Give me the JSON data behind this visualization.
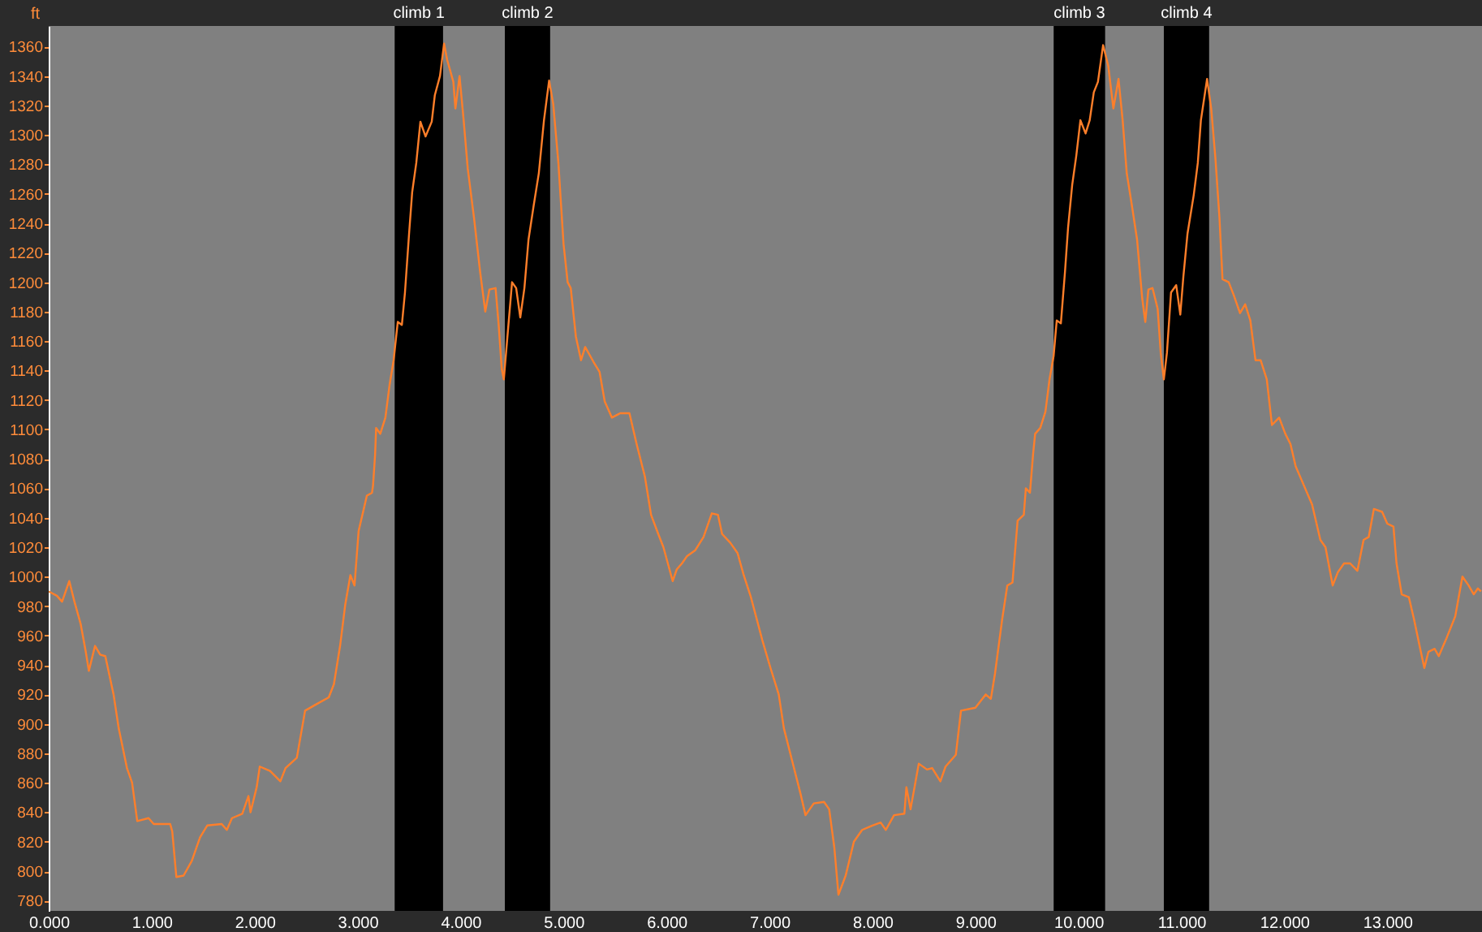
{
  "chart_data": {
    "type": "line",
    "ylabel": "ft",
    "color": "#ff7f2a",
    "line_style": "solid",
    "x": [
      0.0,
      0.08,
      0.13,
      0.2,
      0.25,
      0.31,
      0.36,
      0.39,
      0.45,
      0.5,
      0.55,
      0.63,
      0.68,
      0.76,
      0.81,
      0.86,
      0.97,
      1.02,
      1.18,
      1.2,
      1.24,
      1.31,
      1.39,
      1.47,
      1.54,
      1.68,
      1.73,
      1.78,
      1.88,
      1.94,
      1.96,
      2.02,
      2.05,
      2.15,
      2.25,
      2.3,
      2.41,
      2.49,
      2.59,
      2.72,
      2.77,
      2.83,
      2.88,
      2.93,
      2.97,
      3.01,
      3.06,
      3.09,
      3.14,
      3.15,
      3.17,
      3.18,
      3.22,
      3.27,
      3.31,
      3.35,
      3.39,
      3.43,
      3.46,
      3.5,
      3.53,
      3.57,
      3.61,
      3.66,
      3.72,
      3.75,
      3.8,
      3.84,
      3.87,
      3.93,
      3.95,
      3.99,
      4.03,
      4.07,
      4.13,
      4.19,
      4.24,
      4.28,
      4.34,
      4.37,
      4.4,
      4.42,
      4.46,
      4.5,
      4.54,
      4.58,
      4.62,
      4.66,
      4.71,
      4.76,
      4.81,
      4.86,
      4.9,
      4.95,
      5.0,
      5.04,
      5.07,
      5.12,
      5.17,
      5.21,
      5.29,
      5.35,
      5.4,
      5.47,
      5.55,
      5.64,
      5.71,
      5.79,
      5.85,
      5.92,
      5.97,
      6.06,
      6.1,
      6.15,
      6.2,
      6.28,
      6.36,
      6.44,
      6.5,
      6.54,
      6.62,
      6.69,
      6.75,
      6.82,
      6.93,
      7.01,
      7.09,
      7.14,
      7.22,
      7.3,
      7.35,
      7.43,
      7.53,
      7.58,
      7.63,
      7.67,
      7.74,
      7.82,
      7.9,
      8.0,
      8.08,
      8.13,
      8.21,
      8.31,
      8.33,
      8.37,
      8.45,
      8.53,
      8.58,
      8.66,
      8.71,
      8.81,
      8.86,
      9.0,
      9.1,
      9.15,
      9.19,
      9.26,
      9.31,
      9.36,
      9.41,
      9.47,
      9.49,
      9.53,
      9.56,
      9.58,
      9.63,
      9.68,
      9.72,
      9.76,
      9.79,
      9.83,
      9.87,
      9.9,
      9.94,
      9.98,
      10.02,
      10.07,
      10.11,
      10.15,
      10.19,
      10.24,
      10.29,
      10.34,
      10.39,
      10.43,
      10.47,
      10.52,
      10.57,
      10.62,
      10.65,
      10.68,
      10.72,
      10.77,
      10.8,
      10.83,
      10.86,
      10.9,
      10.95,
      10.99,
      11.02,
      11.06,
      11.12,
      11.16,
      11.19,
      11.25,
      11.29,
      11.33,
      11.37,
      11.4,
      11.46,
      11.51,
      11.57,
      11.62,
      11.67,
      11.72,
      11.77,
      11.83,
      11.88,
      11.95,
      12.01,
      12.06,
      12.11,
      12.19,
      12.27,
      12.35,
      12.4,
      12.47,
      12.52,
      12.58,
      12.64,
      12.71,
      12.77,
      12.82,
      12.87,
      12.95,
      13.0,
      13.06,
      13.09,
      13.14,
      13.21,
      13.26,
      13.32,
      13.36,
      13.4,
      13.46,
      13.5,
      13.58,
      13.66,
      13.73,
      13.79,
      13.84,
      13.88,
      13.91
    ],
    "values": [
      990,
      987,
      983,
      997,
      983,
      968,
      949,
      936,
      953,
      947,
      946,
      920,
      897,
      870,
      860,
      834,
      836,
      832,
      832,
      827,
      796,
      797,
      807,
      823,
      831,
      832,
      828,
      836,
      839,
      851,
      840,
      857,
      871,
      868,
      861,
      870,
      877,
      909,
      913,
      918,
      927,
      953,
      981,
      1001,
      994,
      1031,
      1046,
      1055,
      1057,
      1062,
      1083,
      1101,
      1097,
      1108,
      1130,
      1147,
      1173,
      1171,
      1193,
      1233,
      1261,
      1281,
      1309,
      1299,
      1309,
      1327,
      1340,
      1362,
      1351,
      1336,
      1318,
      1340,
      1310,
      1277,
      1244,
      1207,
      1180,
      1195,
      1196,
      1171,
      1141,
      1134,
      1167,
      1200,
      1196,
      1176,
      1196,
      1229,
      1252,
      1274,
      1310,
      1337,
      1321,
      1281,
      1226,
      1200,
      1196,
      1163,
      1147,
      1156,
      1146,
      1139,
      1119,
      1108,
      1111,
      1111,
      1090,
      1068,
      1042,
      1029,
      1020,
      997,
      1005,
      1009,
      1014,
      1018,
      1027,
      1043,
      1042,
      1029,
      1023,
      1016,
      1001,
      986,
      957,
      938,
      920,
      897,
      875,
      853,
      838,
      846,
      847,
      842,
      816,
      784,
      797,
      820,
      828,
      831,
      833,
      828,
      838,
      839,
      857,
      842,
      873,
      869,
      870,
      861,
      871,
      879,
      909,
      911,
      920,
      917,
      934,
      971,
      994,
      996,
      1038,
      1042,
      1060,
      1057,
      1083,
      1097,
      1101,
      1112,
      1134,
      1150,
      1174,
      1172,
      1207,
      1237,
      1266,
      1286,
      1310,
      1301,
      1310,
      1329,
      1336,
      1361,
      1347,
      1318,
      1338,
      1310,
      1274,
      1252,
      1229,
      1189,
      1173,
      1195,
      1196,
      1182,
      1152,
      1134,
      1152,
      1193,
      1198,
      1178,
      1204,
      1233,
      1259,
      1281,
      1310,
      1338,
      1318,
      1285,
      1244,
      1202,
      1200,
      1191,
      1179,
      1185,
      1174,
      1147,
      1147,
      1134,
      1103,
      1108,
      1097,
      1090,
      1075,
      1062,
      1049,
      1025,
      1020,
      994,
      1003,
      1009,
      1009,
      1004,
      1025,
      1027,
      1046,
      1044,
      1036,
      1034,
      1009,
      988,
      986,
      971,
      951,
      938,
      949,
      951,
      946,
      959,
      973,
      1000,
      994,
      988,
      992,
      990
    ],
    "xlim": [
      0,
      13.92
    ],
    "ylim": [
      773,
      1374
    ],
    "xticks": [
      {
        "value": 0,
        "label": "0.000"
      },
      {
        "value": 1,
        "label": "1.000"
      },
      {
        "value": 2,
        "label": "2.000"
      },
      {
        "value": 3,
        "label": "3.000"
      },
      {
        "value": 4,
        "label": "4.000"
      },
      {
        "value": 5,
        "label": "5.000"
      },
      {
        "value": 6,
        "label": "6.000"
      },
      {
        "value": 7,
        "label": "7.000"
      },
      {
        "value": 8,
        "label": "8.000"
      },
      {
        "value": 9,
        "label": "9.000"
      },
      {
        "value": 10,
        "label": "10.000"
      },
      {
        "value": 11,
        "label": "11.000"
      },
      {
        "value": 12,
        "label": "12.000"
      },
      {
        "value": 13,
        "label": "13.000"
      }
    ],
    "yticks": [
      780,
      800,
      820,
      840,
      860,
      880,
      900,
      920,
      940,
      960,
      980,
      1000,
      1020,
      1040,
      1060,
      1080,
      1100,
      1120,
      1140,
      1160,
      1180,
      1200,
      1220,
      1240,
      1260,
      1280,
      1300,
      1320,
      1340,
      1360
    ],
    "bands": [
      {
        "axis": "x",
        "from": 3.36,
        "to": 3.83,
        "label": "climb 1",
        "color": "#000000"
      },
      {
        "axis": "x",
        "from": 4.43,
        "to": 4.87,
        "label": "climb 2",
        "color": "#000000"
      },
      {
        "axis": "x",
        "from": 9.76,
        "to": 10.26,
        "label": "climb 3",
        "color": "#000000"
      },
      {
        "axis": "x",
        "from": 10.83,
        "to": 11.27,
        "label": "climb 4",
        "color": "#000000"
      }
    ]
  }
}
